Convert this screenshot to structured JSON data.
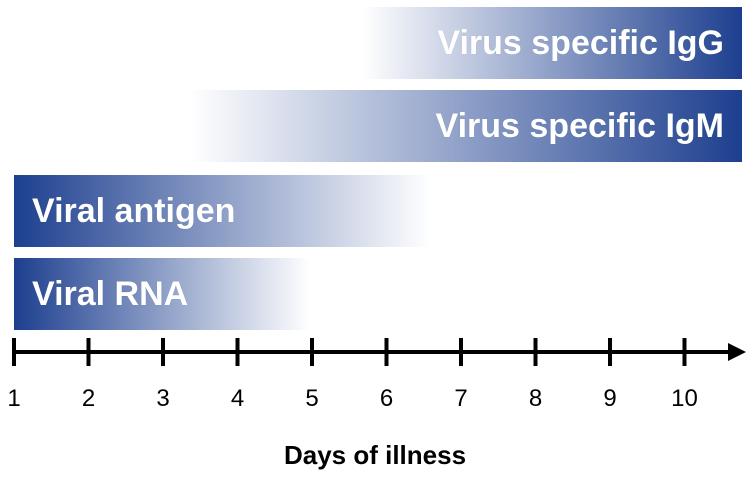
{
  "colors": {
    "bar_dark": "#1d3f8f",
    "bar_light": "#ffffff",
    "axis": "#000000"
  },
  "bars": {
    "igg": {
      "label": "Virus specific IgG",
      "start_day": 6,
      "end_day": 10.8,
      "fade": "start"
    },
    "igm": {
      "label": "Virus specific IgM",
      "start_day": 3.5,
      "end_day": 10.8,
      "fade": "start"
    },
    "antigen": {
      "label": "Viral antigen",
      "start_day": 1,
      "end_day": 6.5,
      "fade": "end"
    },
    "rna": {
      "label": "Viral RNA",
      "start_day": 1,
      "end_day": 5,
      "fade": "end"
    }
  },
  "axis": {
    "title": "Days of illness",
    "ticks": [
      "1",
      "2",
      "3",
      "4",
      "5",
      "6",
      "7",
      "8",
      "9",
      "10"
    ]
  }
}
